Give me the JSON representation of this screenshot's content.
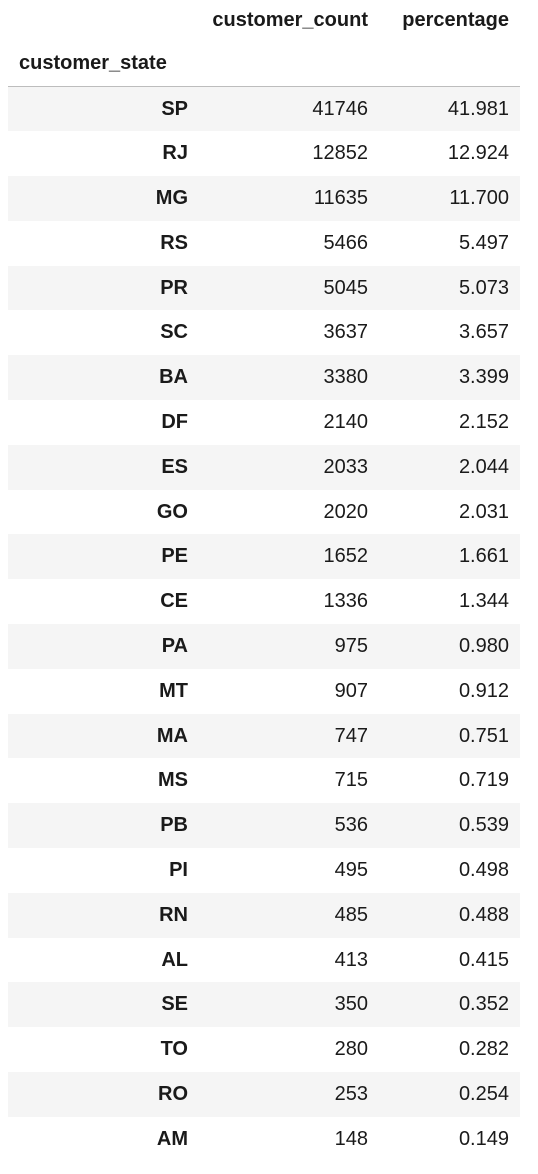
{
  "table": {
    "columns": [
      "customer_count",
      "percentage"
    ],
    "index_name": "customer_state",
    "rows": [
      {
        "state": "SP",
        "customer_count": "41746",
        "percentage": "41.981"
      },
      {
        "state": "RJ",
        "customer_count": "12852",
        "percentage": "12.924"
      },
      {
        "state": "MG",
        "customer_count": "11635",
        "percentage": "11.700"
      },
      {
        "state": "RS",
        "customer_count": "5466",
        "percentage": "5.497"
      },
      {
        "state": "PR",
        "customer_count": "5045",
        "percentage": "5.073"
      },
      {
        "state": "SC",
        "customer_count": "3637",
        "percentage": "3.657"
      },
      {
        "state": "BA",
        "customer_count": "3380",
        "percentage": "3.399"
      },
      {
        "state": "DF",
        "customer_count": "2140",
        "percentage": "2.152"
      },
      {
        "state": "ES",
        "customer_count": "2033",
        "percentage": "2.044"
      },
      {
        "state": "GO",
        "customer_count": "2020",
        "percentage": "2.031"
      },
      {
        "state": "PE",
        "customer_count": "1652",
        "percentage": "1.661"
      },
      {
        "state": "CE",
        "customer_count": "1336",
        "percentage": "1.344"
      },
      {
        "state": "PA",
        "customer_count": "975",
        "percentage": "0.980"
      },
      {
        "state": "MT",
        "customer_count": "907",
        "percentage": "0.912"
      },
      {
        "state": "MA",
        "customer_count": "747",
        "percentage": "0.751"
      },
      {
        "state": "MS",
        "customer_count": "715",
        "percentage": "0.719"
      },
      {
        "state": "PB",
        "customer_count": "536",
        "percentage": "0.539"
      },
      {
        "state": "PI",
        "customer_count": "495",
        "percentage": "0.498"
      },
      {
        "state": "RN",
        "customer_count": "485",
        "percentage": "0.488"
      },
      {
        "state": "AL",
        "customer_count": "413",
        "percentage": "0.415"
      },
      {
        "state": "SE",
        "customer_count": "350",
        "percentage": "0.352"
      },
      {
        "state": "TO",
        "customer_count": "280",
        "percentage": "0.282"
      },
      {
        "state": "RO",
        "customer_count": "253",
        "percentage": "0.254"
      },
      {
        "state": "AM",
        "customer_count": "148",
        "percentage": "0.149"
      }
    ]
  },
  "colors": {
    "stripe": "#f5f5f5",
    "text": "#1a1a1a",
    "header_rule": "#bdbdbd"
  }
}
